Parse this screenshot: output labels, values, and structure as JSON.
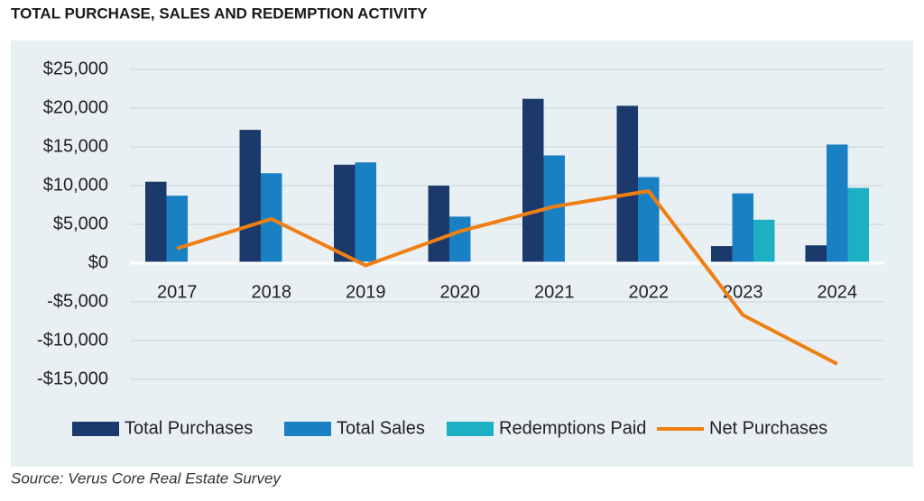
{
  "chart_data": {
    "type": "bar",
    "title": "TOTAL PURCHASE, SALES AND REDEMPTION ACTIVITY",
    "source": "Source: Verus Core Real Estate Survey",
    "categories": [
      "2017",
      "2018",
      "2019",
      "2020",
      "2021",
      "2022",
      "2023",
      "2024"
    ],
    "series": [
      {
        "name": "Total Purchases",
        "type": "bar",
        "color": "#1b3a6b",
        "values": [
          10500,
          17200,
          12700,
          10000,
          21200,
          20300,
          2200,
          2300
        ]
      },
      {
        "name": "Total Sales",
        "type": "bar",
        "color": "#1a80c4",
        "values": [
          8700,
          11600,
          13000,
          6000,
          13900,
          11100,
          9000,
          15300
        ]
      },
      {
        "name": "Redemptions Paid",
        "type": "bar",
        "color": "#1cb0c2",
        "values": [
          null,
          null,
          null,
          null,
          null,
          null,
          5600,
          9700
        ]
      },
      {
        "name": "Net Purchases",
        "type": "line",
        "color": "#f07f13",
        "values": [
          1900,
          5700,
          -300,
          4100,
          7300,
          9300,
          -6700,
          -13000
        ]
      }
    ],
    "ylim": [
      -15000,
      25000
    ],
    "yticks": [
      {
        "value": -15000,
        "label": "-$15,000"
      },
      {
        "value": -10000,
        "label": "-$10,000"
      },
      {
        "value": -5000,
        "label": "-$5,000"
      },
      {
        "value": 0,
        "label": "$0"
      },
      {
        "value": 5000,
        "label": "$5,000"
      },
      {
        "value": 10000,
        "label": "$10,000"
      },
      {
        "value": 15000,
        "label": "$15,000"
      },
      {
        "value": 20000,
        "label": "$20,000"
      },
      {
        "value": 25000,
        "label": "$25,000"
      }
    ],
    "grid": true,
    "legend": "bottom"
  }
}
